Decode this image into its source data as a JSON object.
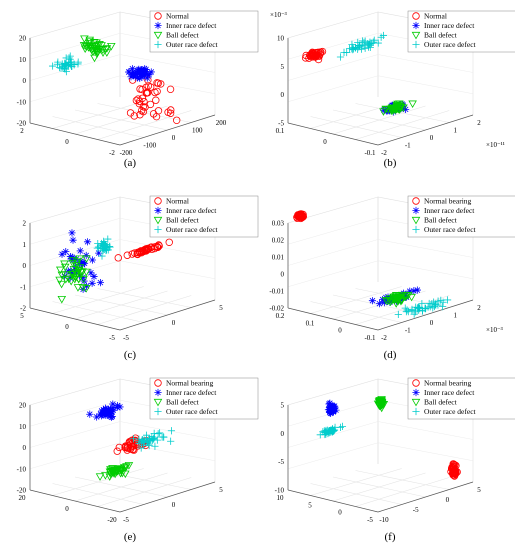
{
  "figure": {
    "panels": [
      {
        "caption": "(a)",
        "x_ticks": [
          "-200",
          "-100",
          "0",
          "100",
          "200"
        ],
        "y_ticks": [
          "2",
          "0",
          "-2"
        ],
        "z_ticks": [
          "20",
          "10",
          "0",
          "-10",
          "-20"
        ],
        "exponents": {}
      },
      {
        "caption": "(b)",
        "x_ticks": [
          "-2",
          "-1",
          "0",
          "1",
          "2"
        ],
        "y_ticks": [
          "0.1",
          "0",
          "-0.1"
        ],
        "z_ticks": [
          "10",
          "5",
          "0",
          "-5"
        ],
        "exponents": {
          "z": "×10⁻³",
          "x": "×10⁻¹¹"
        }
      },
      {
        "caption": "(c)",
        "x_ticks": [
          "-5",
          "0",
          "5"
        ],
        "y_ticks": [
          "5",
          "0",
          "-5"
        ],
        "z_ticks": [
          "2",
          "1",
          "0",
          "-1",
          "-2"
        ],
        "exponents": {}
      },
      {
        "caption": "(d)",
        "x_ticks": [
          "-2",
          "-1",
          "0",
          "1",
          "2"
        ],
        "y_ticks": [
          "0.2",
          "0.1",
          "0",
          "-0.1"
        ],
        "z_ticks": [
          "0.03",
          "0.02",
          "0.01",
          "0",
          "-0.01",
          "-0.02"
        ],
        "exponents": {
          "x": "×10⁻³"
        }
      },
      {
        "caption": "(e)",
        "x_ticks": [
          "-5",
          "0",
          "5"
        ],
        "y_ticks": [
          "20",
          "0",
          "-20"
        ],
        "z_ticks": [
          "20",
          "10",
          "0",
          "-10",
          "-20"
        ],
        "exponents": {}
      },
      {
        "caption": "(f)",
        "x_ticks": [
          "-10",
          "-5",
          "0",
          "5"
        ],
        "y_ticks": [
          "10",
          "5",
          "0",
          "-5"
        ],
        "z_ticks": [
          "5",
          "0",
          "-5",
          "-10"
        ],
        "exponents": {}
      }
    ]
  },
  "chart_data": [
    {
      "type": "scatter",
      "projection": "3d",
      "grid": true,
      "legend_position": "top-right",
      "xlim": [
        -200,
        200
      ],
      "ylim": [
        -2,
        2
      ],
      "zlim": [
        -20,
        20
      ],
      "series": [
        {
          "name": "Normal",
          "marker": "circle",
          "color": "#ff0000",
          "center": [
            10,
            -1.0,
            -8
          ],
          "spread": [
            6,
            1.0,
            11
          ]
        },
        {
          "name": "Inner race defect",
          "marker": "star",
          "color": "#0000ff",
          "center": [
            150,
            0.8,
            -6
          ],
          "spread": [
            40,
            0.3,
            2
          ]
        },
        {
          "name": "Ball defect",
          "marker": "triangle-down",
          "color": "#00cc00",
          "center": [
            -20,
            1.0,
            12
          ],
          "spread": [
            25,
            0.6,
            4
          ]
        },
        {
          "name": "Outer race defect",
          "marker": "plus",
          "color": "#00cccc",
          "center": [
            -60,
            1.8,
            3
          ],
          "spread": [
            30,
            0.3,
            2
          ]
        }
      ]
    },
    {
      "type": "scatter",
      "projection": "3d",
      "grid": true,
      "legend_position": "top-right",
      "xlim": [
        -2,
        2
      ],
      "ylim": [
        -0.1,
        0.1
      ],
      "zlim": [
        -5,
        10
      ],
      "series": [
        {
          "name": "Normal",
          "marker": "circle",
          "color": "#ff0000",
          "center": [
            -1.0,
            0.09,
            6
          ],
          "spread": [
            0.35,
            0.01,
            0.4
          ]
        },
        {
          "name": "Inner race defect",
          "marker": "star",
          "color": "#0000ff",
          "center": [
            0.2,
            -0.02,
            -3
          ],
          "spread": [
            0.4,
            0.01,
            0.4
          ]
        },
        {
          "name": "Ball defect",
          "marker": "triangle-down",
          "color": "#00cc00",
          "center": [
            0.2,
            -0.02,
            -3
          ],
          "spread": [
            0.45,
            0.01,
            0.4
          ]
        },
        {
          "name": "Outer race defect",
          "marker": "plus",
          "color": "#00cccc",
          "center": [
            0.8,
            0.09,
            5
          ],
          "spread": [
            0.9,
            0.01,
            0.6
          ]
        }
      ]
    },
    {
      "type": "scatter",
      "projection": "3d",
      "grid": true,
      "legend_position": "top-right",
      "xlim": [
        -5,
        5
      ],
      "ylim": [
        -5,
        5
      ],
      "zlim": [
        -2,
        2
      ],
      "series": [
        {
          "name": "Normal",
          "marker": "circle",
          "color": "#ff0000",
          "center": [
            2.5,
            0,
            0.2
          ],
          "spread": [
            2.0,
            0.2,
            0.05
          ]
        },
        {
          "name": "Inner race defect",
          "marker": "star",
          "color": "#0000ff",
          "center": [
            -3,
            2,
            0
          ],
          "spread": [
            1.0,
            1.5,
            1.0
          ]
        },
        {
          "name": "Ball defect",
          "marker": "triangle-down",
          "color": "#00cc00",
          "center": [
            -3,
            2,
            -0.5
          ],
          "spread": [
            1.0,
            1.5,
            1.0
          ]
        },
        {
          "name": "Outer race defect",
          "marker": "plus",
          "color": "#00cccc",
          "center": [
            -2,
            0,
            1
          ],
          "spread": [
            0.5,
            0.5,
            0.3
          ]
        }
      ]
    },
    {
      "type": "scatter",
      "projection": "3d",
      "grid": true,
      "legend_position": "top-right",
      "xlim": [
        -2,
        2
      ],
      "ylim": [
        -0.1,
        0.2
      ],
      "zlim": [
        -0.02,
        0.03
      ],
      "series": [
        {
          "name": "Normal bearing",
          "marker": "circle",
          "color": "#ff0000",
          "center": [
            -1.5,
            0.2,
            0.032
          ],
          "spread": [
            0.1,
            0.01,
            0.001
          ]
        },
        {
          "name": "Inner race defect",
          "marker": "star",
          "color": "#0000ff",
          "center": [
            0,
            0,
            -0.015
          ],
          "spread": [
            0.8,
            0.02,
            0.002
          ]
        },
        {
          "name": "Ball defect",
          "marker": "triangle-down",
          "color": "#00cc00",
          "center": [
            0.1,
            0,
            -0.015
          ],
          "spread": [
            0.3,
            0.02,
            0.002
          ]
        },
        {
          "name": "Outer race defect",
          "marker": "plus",
          "color": "#00cccc",
          "center": [
            0.5,
            -0.05,
            -0.02
          ],
          "spread": [
            1.0,
            0.03,
            0.002
          ]
        }
      ]
    },
    {
      "type": "scatter",
      "projection": "3d",
      "grid": true,
      "legend_position": "top-right",
      "xlim": [
        -5,
        5
      ],
      "ylim": [
        -20,
        20
      ],
      "zlim": [
        -20,
        20
      ],
      "series": [
        {
          "name": "Normal bearing",
          "marker": "circle",
          "color": "#ff0000",
          "center": [
            1,
            0,
            -2
          ],
          "spread": [
            1.5,
            2,
            2
          ]
        },
        {
          "name": "Inner race defect",
          "marker": "star",
          "color": "#0000ff",
          "center": [
            2,
            15,
            8
          ],
          "spread": [
            1.2,
            2,
            2
          ]
        },
        {
          "name": "Ball defect",
          "marker": "triangle-down",
          "color": "#00cc00",
          "center": [
            -4,
            -15,
            -3
          ],
          "spread": [
            1.0,
            2,
            1.5
          ]
        },
        {
          "name": "Outer race defect",
          "marker": "plus",
          "color": "#00cccc",
          "center": [
            4,
            5,
            -5
          ],
          "spread": [
            1.5,
            3,
            2
          ]
        }
      ]
    },
    {
      "type": "scatter",
      "projection": "3d",
      "grid": true,
      "legend_position": "top-right",
      "xlim": [
        -10,
        5
      ],
      "ylim": [
        -5,
        10
      ],
      "zlim": [
        -10,
        5
      ],
      "series": [
        {
          "name": "Normal bearing",
          "marker": "circle",
          "color": "#ff0000",
          "center": [
            2,
            -5,
            -7
          ],
          "spread": [
            0.3,
            0.3,
            1.2
          ]
        },
        {
          "name": "Inner race defect",
          "marker": "star",
          "color": "#0000ff",
          "center": [
            -5,
            8,
            3
          ],
          "spread": [
            0.4,
            0.4,
            0.8
          ]
        },
        {
          "name": "Ball defect",
          "marker": "triangle-down",
          "color": "#00cc00",
          "center": [
            0,
            5,
            3
          ],
          "spread": [
            0.3,
            0.3,
            0.6
          ]
        },
        {
          "name": "Outer race defect",
          "marker": "plus",
          "color": "#00cccc",
          "center": [
            -8,
            5,
            1
          ],
          "spread": [
            1.5,
            0.5,
            0.3
          ]
        }
      ]
    }
  ]
}
